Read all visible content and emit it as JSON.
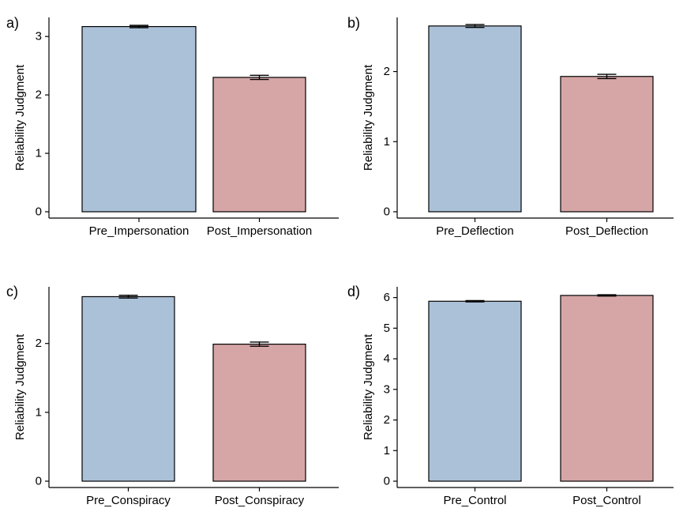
{
  "colors": {
    "pre": "#abc1d8",
    "post": "#d6a6a6"
  },
  "chart_data": [
    {
      "panel": "a)",
      "type": "bar",
      "ylabel": "Reliability Judgment",
      "categories": [
        "Pre_Impersonation",
        "Post_Impersonation"
      ],
      "values": [
        3.17,
        2.3
      ],
      "errors": [
        0.02,
        0.035
      ],
      "ylim": [
        0,
        3.3
      ],
      "yticks": [
        0,
        1,
        2,
        3
      ],
      "grid": false
    },
    {
      "panel": "b)",
      "type": "bar",
      "ylabel": "Reliability Judgment",
      "categories": [
        "Pre_Deflection",
        "Post_Deflection"
      ],
      "values": [
        2.65,
        1.93
      ],
      "errors": [
        0.02,
        0.03
      ],
      "ylim": [
        0,
        2.75
      ],
      "yticks": [
        0,
        1,
        2
      ],
      "grid": false
    },
    {
      "panel": "c)",
      "type": "bar",
      "ylabel": "Reliability Judgment",
      "categories": [
        "Pre_Conspiracy",
        "Post_Conspiracy"
      ],
      "values": [
        2.68,
        1.99
      ],
      "errors": [
        0.02,
        0.03
      ],
      "ylim": [
        0,
        2.8
      ],
      "yticks": [
        0,
        1,
        2
      ],
      "grid": false
    },
    {
      "panel": "d)",
      "type": "bar",
      "ylabel": "Reliability Judgment",
      "categories": [
        "Pre_Control",
        "Post_Control"
      ],
      "values": [
        5.88,
        6.07
      ],
      "errors": [
        0.02,
        0.02
      ],
      "ylim": [
        0,
        6.3
      ],
      "yticks": [
        0,
        1,
        2,
        3,
        4,
        5,
        6
      ],
      "grid": false
    }
  ]
}
